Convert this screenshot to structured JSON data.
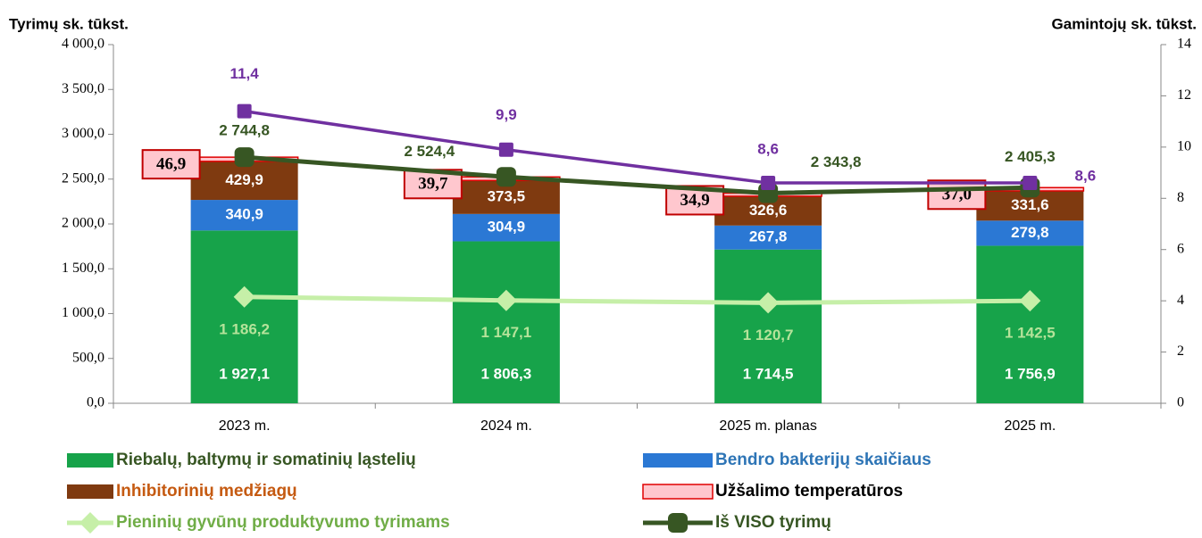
{
  "chart_data": {
    "type": "bar",
    "stacked": true,
    "y_label": "Tyrimų sk. tūkst.",
    "y2_label": "Gamintojų sk. tūkst.",
    "categories": [
      "2023 m.",
      "2024 m.",
      "2025 m. planas",
      "2025 m."
    ],
    "ylim": [
      0,
      4000
    ],
    "yticks": [
      {
        "value": 0,
        "label": "0,0"
      },
      {
        "value": 500,
        "label": "500,0"
      },
      {
        "value": 1000,
        "label": "1 000,0"
      },
      {
        "value": 1500,
        "label": "1 500,0"
      },
      {
        "value": 2000,
        "label": "2 000,0"
      },
      {
        "value": 2500,
        "label": "2 500,0"
      },
      {
        "value": 3000,
        "label": "3 000,0"
      },
      {
        "value": 3500,
        "label": "3 500,0"
      },
      {
        "value": 4000,
        "label": "4 000,0"
      }
    ],
    "y2lim": [
      0,
      14
    ],
    "y2ticks": [
      0,
      2,
      4,
      6,
      8,
      10,
      12,
      14
    ],
    "grid": false,
    "series": [
      {
        "name": "Riebalų, baltymų ir somatinių ląstelių",
        "type": "bar",
        "color": "#17a34a",
        "values": [
          1927.1,
          1806.3,
          1714.5,
          1756.9
        ],
        "value_labels": [
          "1 927,1",
          "1 806,3",
          "1 714,5",
          "1 756,9"
        ]
      },
      {
        "name": "Bendro bakterijų skaičiaus",
        "type": "bar",
        "color": "#2b78d4",
        "values": [
          340.9,
          304.9,
          267.8,
          279.8
        ],
        "value_labels": [
          "340,9",
          "304,9",
          "267,8",
          "279,8"
        ]
      },
      {
        "name": "Inhibitorinių medžiagų",
        "type": "bar",
        "color": "#7f3a10",
        "values": [
          429.9,
          373.5,
          326.6,
          331.6
        ],
        "value_labels": [
          "429,9",
          "373,5",
          "326,6",
          "331,6"
        ]
      },
      {
        "name": "Užšalimo temperatūros",
        "type": "bar",
        "color": "#ffc7ce",
        "values": [
          46.9,
          39.7,
          34.9,
          37.0
        ],
        "value_labels": [
          "46,9",
          "39,7",
          "34,9",
          "37,0"
        ]
      },
      {
        "name": "Pieninių gyvūnų produktyvumo tyrimams",
        "type": "line",
        "color": "#c6efa8",
        "values": [
          1186.2,
          1147.1,
          1120.7,
          1142.5
        ],
        "value_labels": [
          "1 186,2",
          "1 147,1",
          "1 120,7",
          "1 142,5"
        ]
      },
      {
        "name": "Iš VISO tyrimų",
        "type": "line",
        "color": "#375623",
        "values": [
          2744.8,
          2524.4,
          2343.8,
          2405.3
        ],
        "value_labels": [
          "2 744,8",
          "2 524,4",
          "2 343,8",
          "2 405,3"
        ]
      },
      {
        "type": "line",
        "axis": "y2",
        "color": "#7030a0",
        "values": [
          11.4,
          9.9,
          8.6,
          8.6
        ],
        "value_labels": [
          "11,4",
          "9,9",
          "8,6",
          "8,6"
        ]
      }
    ]
  }
}
